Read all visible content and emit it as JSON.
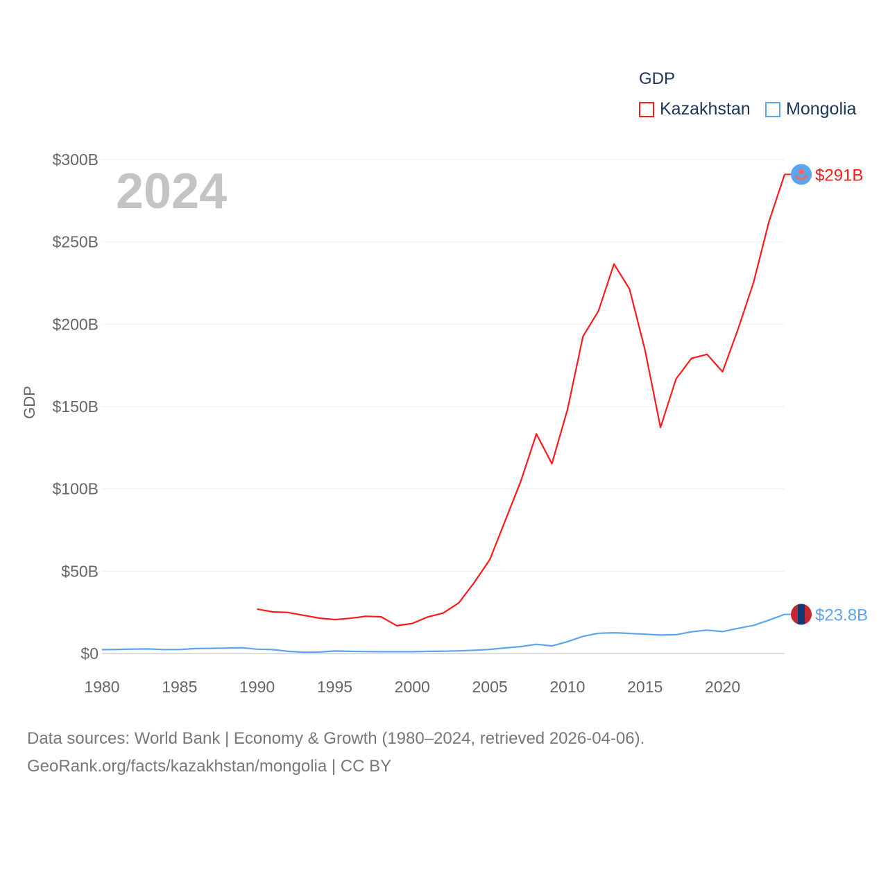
{
  "chart_data": {
    "type": "line",
    "title": "GDP",
    "ylabel": "GDP",
    "xlabel": "",
    "year_watermark": "2024",
    "xlim": [
      1980,
      2024
    ],
    "ylim": [
      0,
      300
    ],
    "x_ticks": [
      "1980",
      "1985",
      "1990",
      "1995",
      "2000",
      "2005",
      "2010",
      "2015",
      "2020"
    ],
    "y_ticks": [
      "$0",
      "$50B",
      "$100B",
      "$150B",
      "$200B",
      "$250B",
      "$300B"
    ],
    "y_tick_values": [
      0,
      50,
      100,
      150,
      200,
      250,
      300
    ],
    "grid": true,
    "legend_title": "GDP",
    "legend_position": "top-right",
    "unit": "billion USD",
    "series": [
      {
        "name": "Kazakhstan",
        "color": "#ff1a1a",
        "end_label": "$291B",
        "flag_icon": "kazakhstan-flag-icon",
        "x": [
          1990,
          1991,
          1992,
          1993,
          1994,
          1995,
          1996,
          1997,
          1998,
          1999,
          2000,
          2001,
          2002,
          2003,
          2004,
          2005,
          2006,
          2007,
          2008,
          2009,
          2010,
          2011,
          2012,
          2013,
          2014,
          2015,
          2016,
          2017,
          2018,
          2019,
          2020,
          2021,
          2022,
          2023,
          2024
        ],
        "values": [
          27.0,
          25.3,
          24.9,
          23.2,
          21.5,
          20.6,
          21.4,
          22.6,
          22.3,
          16.9,
          18.3,
          22.2,
          24.6,
          30.8,
          43.2,
          57.1,
          81.0,
          104.8,
          133.4,
          115.3,
          148.0,
          192.6,
          208.0,
          236.6,
          221.4,
          184.4,
          137.3,
          166.8,
          179.3,
          181.7,
          171.1,
          197.1,
          225.5,
          262.6,
          291.0
        ]
      },
      {
        "name": "Mongolia",
        "color": "#5aa5ee",
        "end_label": "$23.8B",
        "flag_icon": "mongolia-flag-icon",
        "x": [
          1980,
          1981,
          1982,
          1983,
          1984,
          1985,
          1986,
          1987,
          1988,
          1989,
          1990,
          1991,
          1992,
          1993,
          1994,
          1995,
          1996,
          1997,
          1998,
          1999,
          2000,
          2001,
          2002,
          2003,
          2004,
          2005,
          2006,
          2007,
          2008,
          2009,
          2010,
          2011,
          2012,
          2013,
          2014,
          2015,
          2016,
          2017,
          2018,
          2019,
          2020,
          2021,
          2022,
          2023,
          2024
        ],
        "values": [
          2.3,
          2.5,
          2.7,
          2.8,
          2.4,
          2.4,
          3.0,
          3.1,
          3.3,
          3.5,
          2.6,
          2.4,
          1.3,
          0.8,
          0.9,
          1.5,
          1.3,
          1.2,
          1.1,
          1.1,
          1.1,
          1.3,
          1.4,
          1.6,
          2.0,
          2.5,
          3.4,
          4.2,
          5.6,
          4.6,
          7.2,
          10.4,
          12.3,
          12.6,
          12.2,
          11.7,
          11.2,
          11.4,
          13.2,
          14.2,
          13.3,
          15.3,
          17.1,
          20.3,
          23.8
        ]
      }
    ]
  },
  "footer": {
    "line1": "Data sources: World Bank | Economy & Growth (1980–2024, retrieved 2026-04-06).",
    "line2": "GeoRank.org/facts/kazakhstan/mongolia | CC BY"
  }
}
